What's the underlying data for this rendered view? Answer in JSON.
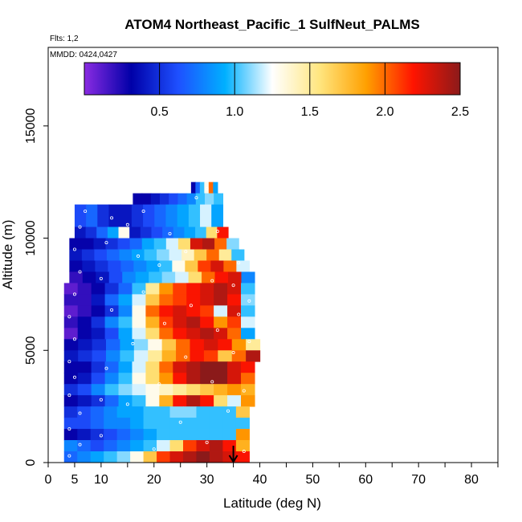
{
  "title": "ATOM4 Northeast_Pacific_1 SulfNeut_PALMS",
  "flights_note": "Flts: 1,2",
  "mmdd_note": "MMDD: 0424,0427",
  "chart_data": {
    "type": "heatmap",
    "title": "ATOM4 Northeast_Pacific_1 SulfNeut_PALMS",
    "xlabel": "Latitude (deg N)",
    "ylabel": "Altitude (m)",
    "xlim": [
      0,
      85
    ],
    "ylim": [
      0,
      18500
    ],
    "x_ticks": [
      0,
      5,
      10,
      20,
      30,
      40,
      50,
      60,
      70,
      80
    ],
    "x_minor_ticks": [
      15,
      25,
      35,
      45,
      55,
      65,
      75,
      85
    ],
    "y_ticks": [
      0,
      5000,
      10000,
      15000
    ],
    "colorbar": {
      "min": 0,
      "max": 2.5,
      "ticks": [
        0.5,
        1.0,
        1.5,
        2.0,
        2.5
      ],
      "tick_labels": [
        "0.5",
        "1.0",
        "1.5",
        "2.0",
        "2.5"
      ],
      "colors": [
        "#8a2be2",
        "#0000a8",
        "#1e50ff",
        "#00b0ff",
        "#ffffff",
        "#ffe680",
        "#ffa000",
        "#ff1400",
        "#8b1a1a"
      ]
    },
    "marker_latitude": 35,
    "rows": [
      {
        "y0": 12000,
        "y1": 12500,
        "x0": 27,
        "x1": 32,
        "values": [
          0.3,
          0.7,
          1.0,
          1.3,
          2.0,
          0.9
        ]
      },
      {
        "y0": 11000,
        "y1": 12000,
        "x0": 16,
        "x1": 33,
        "values": [
          0.3,
          0.3,
          0.4,
          0.5,
          0.6,
          0.7,
          0.8,
          1.0,
          1.1,
          1.0
        ]
      },
      {
        "y0": 10500,
        "y1": 11500,
        "x0": 5,
        "x1": 33,
        "values": [
          0.6,
          0.7,
          0.5,
          0.4,
          0.4,
          0.5,
          0.6,
          0.7,
          0.8,
          0.9,
          1.0,
          1.2,
          0.9
        ]
      },
      {
        "y0": 10000,
        "y1": 10500,
        "x0": 5,
        "x1": 34,
        "values": [
          0.4,
          0.5,
          0.7,
          0.9,
          1.3,
          0.4,
          0.5,
          0.6,
          0.7,
          0.8,
          0.9,
          1.0,
          1.6,
          2.2
        ]
      },
      {
        "y0": 9500,
        "y1": 10000,
        "x0": 4,
        "x1": 36,
        "values": [
          0.3,
          0.3,
          0.4,
          0.5,
          0.6,
          0.7,
          0.9,
          1.0,
          1.2,
          1.6,
          2.3,
          2.4,
          2.0,
          1.1
        ]
      },
      {
        "y0": 9000,
        "y1": 9500,
        "x0": 4,
        "x1": 37,
        "values": [
          0.4,
          0.5,
          0.6,
          0.7,
          0.8,
          0.9,
          1.0,
          1.1,
          1.2,
          1.4,
          1.7,
          2.0,
          1.5,
          1.0
        ]
      },
      {
        "y0": 8500,
        "y1": 9000,
        "x0": 4,
        "x1": 38,
        "values": [
          0.3,
          0.4,
          0.5,
          0.6,
          0.7,
          0.8,
          0.9,
          1.0,
          1.3,
          1.7,
          2.1,
          2.3,
          2.0,
          1.2
        ]
      },
      {
        "y0": 8000,
        "y1": 8500,
        "x0": 4,
        "x1": 39,
        "values": [
          0.2,
          0.3,
          0.4,
          0.6,
          0.8,
          0.9,
          1.0,
          1.1,
          1.2,
          1.6,
          2.0,
          2.2,
          2.3,
          0.8
        ]
      },
      {
        "y0": 7500,
        "y1": 8000,
        "x0": 3,
        "x1": 39,
        "values": [
          0.1,
          0.2,
          0.3,
          0.5,
          0.7,
          1.0,
          1.5,
          1.9,
          2.1,
          2.2,
          2.3,
          2.4,
          2.3,
          1.0
        ]
      },
      {
        "y0": 7000,
        "y1": 7500,
        "x0": 3,
        "x1": 39,
        "values": [
          0.2,
          0.2,
          0.4,
          0.7,
          0.9,
          1.2,
          1.7,
          2.0,
          2.1,
          2.2,
          2.3,
          2.4,
          2.2,
          1.1
        ]
      },
      {
        "y0": 6500,
        "y1": 7000,
        "x0": 3,
        "x1": 39,
        "values": [
          0.1,
          0.2,
          0.3,
          0.5,
          0.8,
          1.3,
          2.0,
          2.2,
          2.3,
          2.2,
          2.1,
          1.2,
          2.3,
          1.0
        ]
      },
      {
        "y0": 6000,
        "y1": 6500,
        "x0": 3,
        "x1": 39,
        "values": [
          0.2,
          0.3,
          0.5,
          0.8,
          1.0,
          1.3,
          1.8,
          2.1,
          2.3,
          2.4,
          2.2,
          1.9,
          2.1,
          1.2
        ]
      },
      {
        "y0": 5500,
        "y1": 6000,
        "x0": 3,
        "x1": 39,
        "values": [
          0.1,
          0.3,
          0.4,
          0.6,
          0.9,
          1.2,
          1.6,
          2.0,
          2.2,
          2.3,
          2.4,
          2.3,
          2.0,
          0.9
        ]
      },
      {
        "y0": 5000,
        "y1": 5500,
        "x0": 3,
        "x1": 40,
        "values": [
          0.3,
          0.4,
          0.5,
          0.7,
          0.9,
          1.1,
          1.3,
          1.7,
          2.0,
          2.2,
          2.3,
          2.2,
          1.9,
          1.5
        ]
      },
      {
        "y0": 4500,
        "y1": 5000,
        "x0": 3,
        "x1": 40,
        "values": [
          0.4,
          0.5,
          0.6,
          0.8,
          1.0,
          1.2,
          1.5,
          1.8,
          2.0,
          2.2,
          2.1,
          1.7,
          2.0,
          2.4
        ]
      },
      {
        "y0": 4000,
        "y1": 4500,
        "x0": 3,
        "x1": 39,
        "values": [
          0.3,
          0.3,
          0.5,
          0.7,
          0.9,
          1.2,
          1.6,
          2.0,
          2.3,
          2.4,
          2.5,
          2.5,
          2.3,
          2.2
        ]
      },
      {
        "y0": 3500,
        "y1": 4000,
        "x0": 3,
        "x1": 39,
        "values": [
          0.3,
          0.4,
          0.6,
          0.8,
          1.0,
          1.3,
          1.6,
          1.9,
          2.2,
          2.4,
          2.5,
          2.5,
          2.3,
          2.0
        ]
      },
      {
        "y0": 3000,
        "y1": 3500,
        "x0": 3,
        "x1": 39,
        "values": [
          0.5,
          0.6,
          0.8,
          1.0,
          1.1,
          1.2,
          1.3,
          1.4,
          1.5,
          1.6,
          1.7,
          1.8,
          1.9,
          1.8
        ]
      },
      {
        "y0": 2500,
        "y1": 3000,
        "x0": 3,
        "x1": 39,
        "values": [
          0.3,
          0.4,
          0.5,
          0.7,
          0.9,
          1.0,
          1.3,
          1.8,
          2.2,
          2.4,
          2.2,
          1.6,
          1.2,
          1.9
        ]
      },
      {
        "y0": 2000,
        "y1": 2500,
        "x0": 3,
        "x1": 38,
        "values": [
          0.5,
          0.6,
          0.7,
          0.8,
          0.9,
          0.9,
          1.0,
          1.0,
          1.1,
          1.1,
          1.0,
          1.0,
          1.0,
          1.7
        ]
      },
      {
        "y0": 1500,
        "y1": 2000,
        "x0": 3,
        "x1": 38,
        "values": [
          0.6,
          0.6,
          0.7,
          0.8,
          0.8,
          0.9,
          1.0,
          1.0,
          1.0,
          1.0,
          1.0,
          1.0,
          1.0,
          1.0
        ]
      },
      {
        "y0": 1000,
        "y1": 1500,
        "x0": 3,
        "x1": 38,
        "values": [
          0.3,
          0.4,
          0.5,
          0.6,
          0.7,
          0.8,
          0.9,
          1.0,
          1.0,
          1.0,
          1.0,
          1.0,
          1.0,
          1.9
        ]
      },
      {
        "y0": 500,
        "y1": 1000,
        "x0": 3,
        "x1": 38,
        "values": [
          0.8,
          0.7,
          0.6,
          0.7,
          0.8,
          0.9,
          1.0,
          1.2,
          1.6,
          2.1,
          2.3,
          2.4,
          2.2,
          1.8
        ]
      },
      {
        "y0": 0,
        "y1": 500,
        "x0": 3,
        "x1": 38,
        "values": [
          0.7,
          0.8,
          0.9,
          1.0,
          1.1,
          1.3,
          1.7,
          2.1,
          2.3,
          2.4,
          2.5,
          2.4,
          2.3,
          2.2
        ]
      }
    ],
    "samples": [
      [
        4,
        300
      ],
      [
        6,
        800
      ],
      [
        4,
        1500
      ],
      [
        6,
        2200
      ],
      [
        4,
        3000
      ],
      [
        5,
        3800
      ],
      [
        4,
        4500
      ],
      [
        5,
        5500
      ],
      [
        4,
        6500
      ],
      [
        5,
        7500
      ],
      [
        6,
        8500
      ],
      [
        5,
        9500
      ],
      [
        6,
        10500
      ],
      [
        7,
        11200
      ],
      [
        10,
        1200
      ],
      [
        10,
        2800
      ],
      [
        11,
        4200
      ],
      [
        12,
        6800
      ],
      [
        10,
        8200
      ],
      [
        11,
        9800
      ],
      [
        12,
        10900
      ],
      [
        15,
        2600
      ],
      [
        16,
        5300
      ],
      [
        18,
        7600
      ],
      [
        17,
        9200
      ],
      [
        15,
        10600
      ],
      [
        18,
        11200
      ],
      [
        20,
        600
      ],
      [
        21,
        3500
      ],
      [
        22,
        6200
      ],
      [
        21,
        8800
      ],
      [
        23,
        10200
      ],
      [
        25,
        1800
      ],
      [
        26,
        4700
      ],
      [
        27,
        7000
      ],
      [
        26,
        9400
      ],
      [
        28,
        11800
      ],
      [
        30,
        900
      ],
      [
        31,
        3600
      ],
      [
        32,
        5900
      ],
      [
        31,
        8100
      ],
      [
        32,
        10300
      ],
      [
        30,
        12200
      ],
      [
        34,
        2300
      ],
      [
        35,
        4900
      ],
      [
        36,
        6600
      ],
      [
        35,
        7900
      ],
      [
        36,
        8900
      ],
      [
        37,
        9600
      ],
      [
        37,
        3200
      ],
      [
        38,
        5400
      ],
      [
        38,
        7200
      ],
      [
        37,
        500
      ]
    ]
  }
}
